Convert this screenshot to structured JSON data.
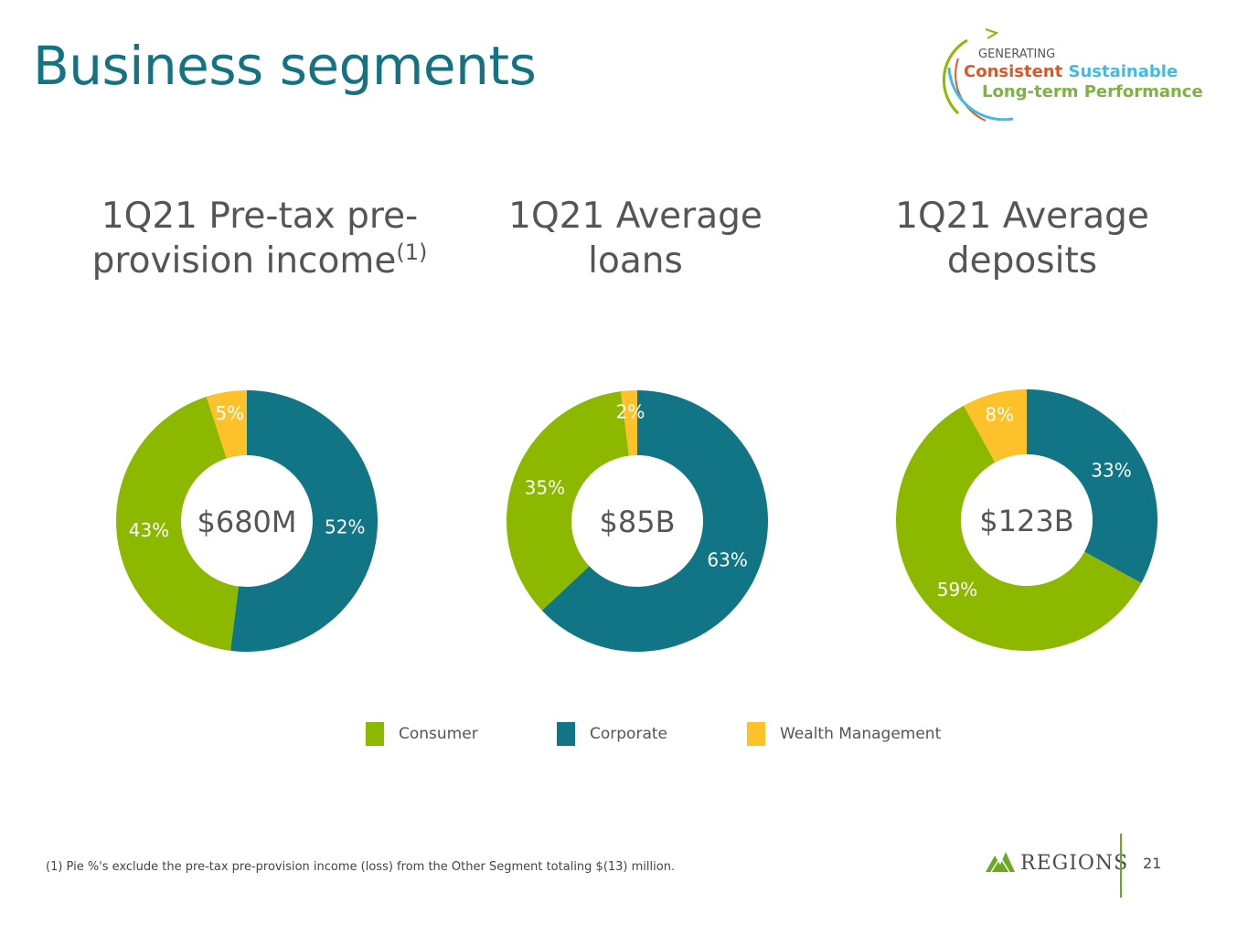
{
  "slide": {
    "title": "Business segments",
    "page_number": "21",
    "footnote": "(1) Pie %'s exclude the pre-tax pre-provision income (loss) from the Other Segment totaling $(13) million.",
    "logo_text": "REGIONS"
  },
  "badge": {
    "line1": "GENERATING",
    "word_consistent": "Consistent",
    "word_sustainable": "Sustainable",
    "line3": "Long-term Performance"
  },
  "colors": {
    "consumer": "#8cb800",
    "corporate": "#117585",
    "wealth": "#fdc22a",
    "title": "#157381"
  },
  "legend": [
    {
      "name": "Consumer",
      "color": "#8cb800"
    },
    {
      "name": "Corporate",
      "color": "#117585"
    },
    {
      "name": "Wealth Management",
      "color": "#fdc22a"
    }
  ],
  "chart_data": [
    {
      "type": "pie",
      "title_line1": "1Q21 Pre-tax pre-",
      "title_line2": "provision income",
      "title_sup": "(1)",
      "center_label": "$680M",
      "slices": [
        {
          "name": "Corporate",
          "value": 52,
          "label": "52%"
        },
        {
          "name": "Consumer",
          "value": 43,
          "label": "43%"
        },
        {
          "name": "Wealth Management",
          "value": 5,
          "label": "5%"
        }
      ]
    },
    {
      "type": "pie",
      "title_line1": "1Q21 Average",
      "title_line2": "loans",
      "title_sup": "",
      "center_label": "$85B",
      "slices": [
        {
          "name": "Corporate",
          "value": 63,
          "label": "63%"
        },
        {
          "name": "Consumer",
          "value": 35,
          "label": "35%"
        },
        {
          "name": "Wealth Management",
          "value": 2,
          "label": "2%"
        }
      ]
    },
    {
      "type": "pie",
      "title_line1": "1Q21 Average",
      "title_line2": "deposits",
      "title_sup": "",
      "center_label": "$123B",
      "slices": [
        {
          "name": "Corporate",
          "value": 33,
          "label": "33%"
        },
        {
          "name": "Consumer",
          "value": 59,
          "label": "59%"
        },
        {
          "name": "Wealth Management",
          "value": 8,
          "label": "8%"
        }
      ]
    }
  ]
}
